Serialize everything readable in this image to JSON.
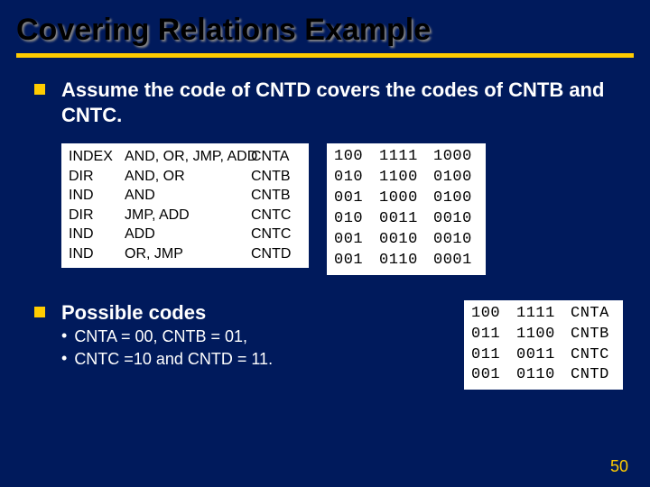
{
  "title": "Covering Relations Example",
  "bullet1": "Assume the code of CNTD covers the codes of CNTB and CNTC.",
  "table1": {
    "rows": [
      {
        "c1": "INDEX",
        "c2": "AND, OR, JMP, ADD",
        "c3": "CNTA"
      },
      {
        "c1": "DIR",
        "c2": "AND, OR",
        "c3": "CNTB"
      },
      {
        "c1": "IND",
        "c2": "AND",
        "c3": "CNTB"
      },
      {
        "c1": "DIR",
        "c2": "JMP, ADD",
        "c3": "CNTC"
      },
      {
        "c1": "IND",
        "c2": "ADD",
        "c3": "CNTC"
      },
      {
        "c1": "IND",
        "c2": "OR, JMP",
        "c3": "CNTD"
      }
    ]
  },
  "table2": {
    "rows": [
      {
        "m1": "100",
        "m2": "1111",
        "m3": "1000"
      },
      {
        "m1": "010",
        "m2": "1100",
        "m3": "0100"
      },
      {
        "m1": "001",
        "m2": "1000",
        "m3": "0100"
      },
      {
        "m1": "010",
        "m2": "0011",
        "m3": "0010"
      },
      {
        "m1": "001",
        "m2": "0010",
        "m3": "0010"
      },
      {
        "m1": "001",
        "m2": "0110",
        "m3": "0001"
      }
    ]
  },
  "bullet2": {
    "heading": "Possible codes",
    "sub1": "CNTA = 00, CNTB = 01,",
    "sub2": "CNTC =10 and CNTD = 11."
  },
  "table3": {
    "rows": [
      {
        "m1": "100",
        "m2": "1111",
        "m3": "CNTA"
      },
      {
        "m1": "011",
        "m2": "1100",
        "m3": "CNTB"
      },
      {
        "m1": "011",
        "m2": "0011",
        "m3": "CNTC"
      },
      {
        "m1": "001",
        "m2": "0110",
        "m3": "CNTD"
      }
    ]
  },
  "pageNumber": "50",
  "colors": {
    "background": "#001a5c",
    "accent": "#ffcc00",
    "tableBg": "#ffffff",
    "titleColor": "#000000"
  }
}
